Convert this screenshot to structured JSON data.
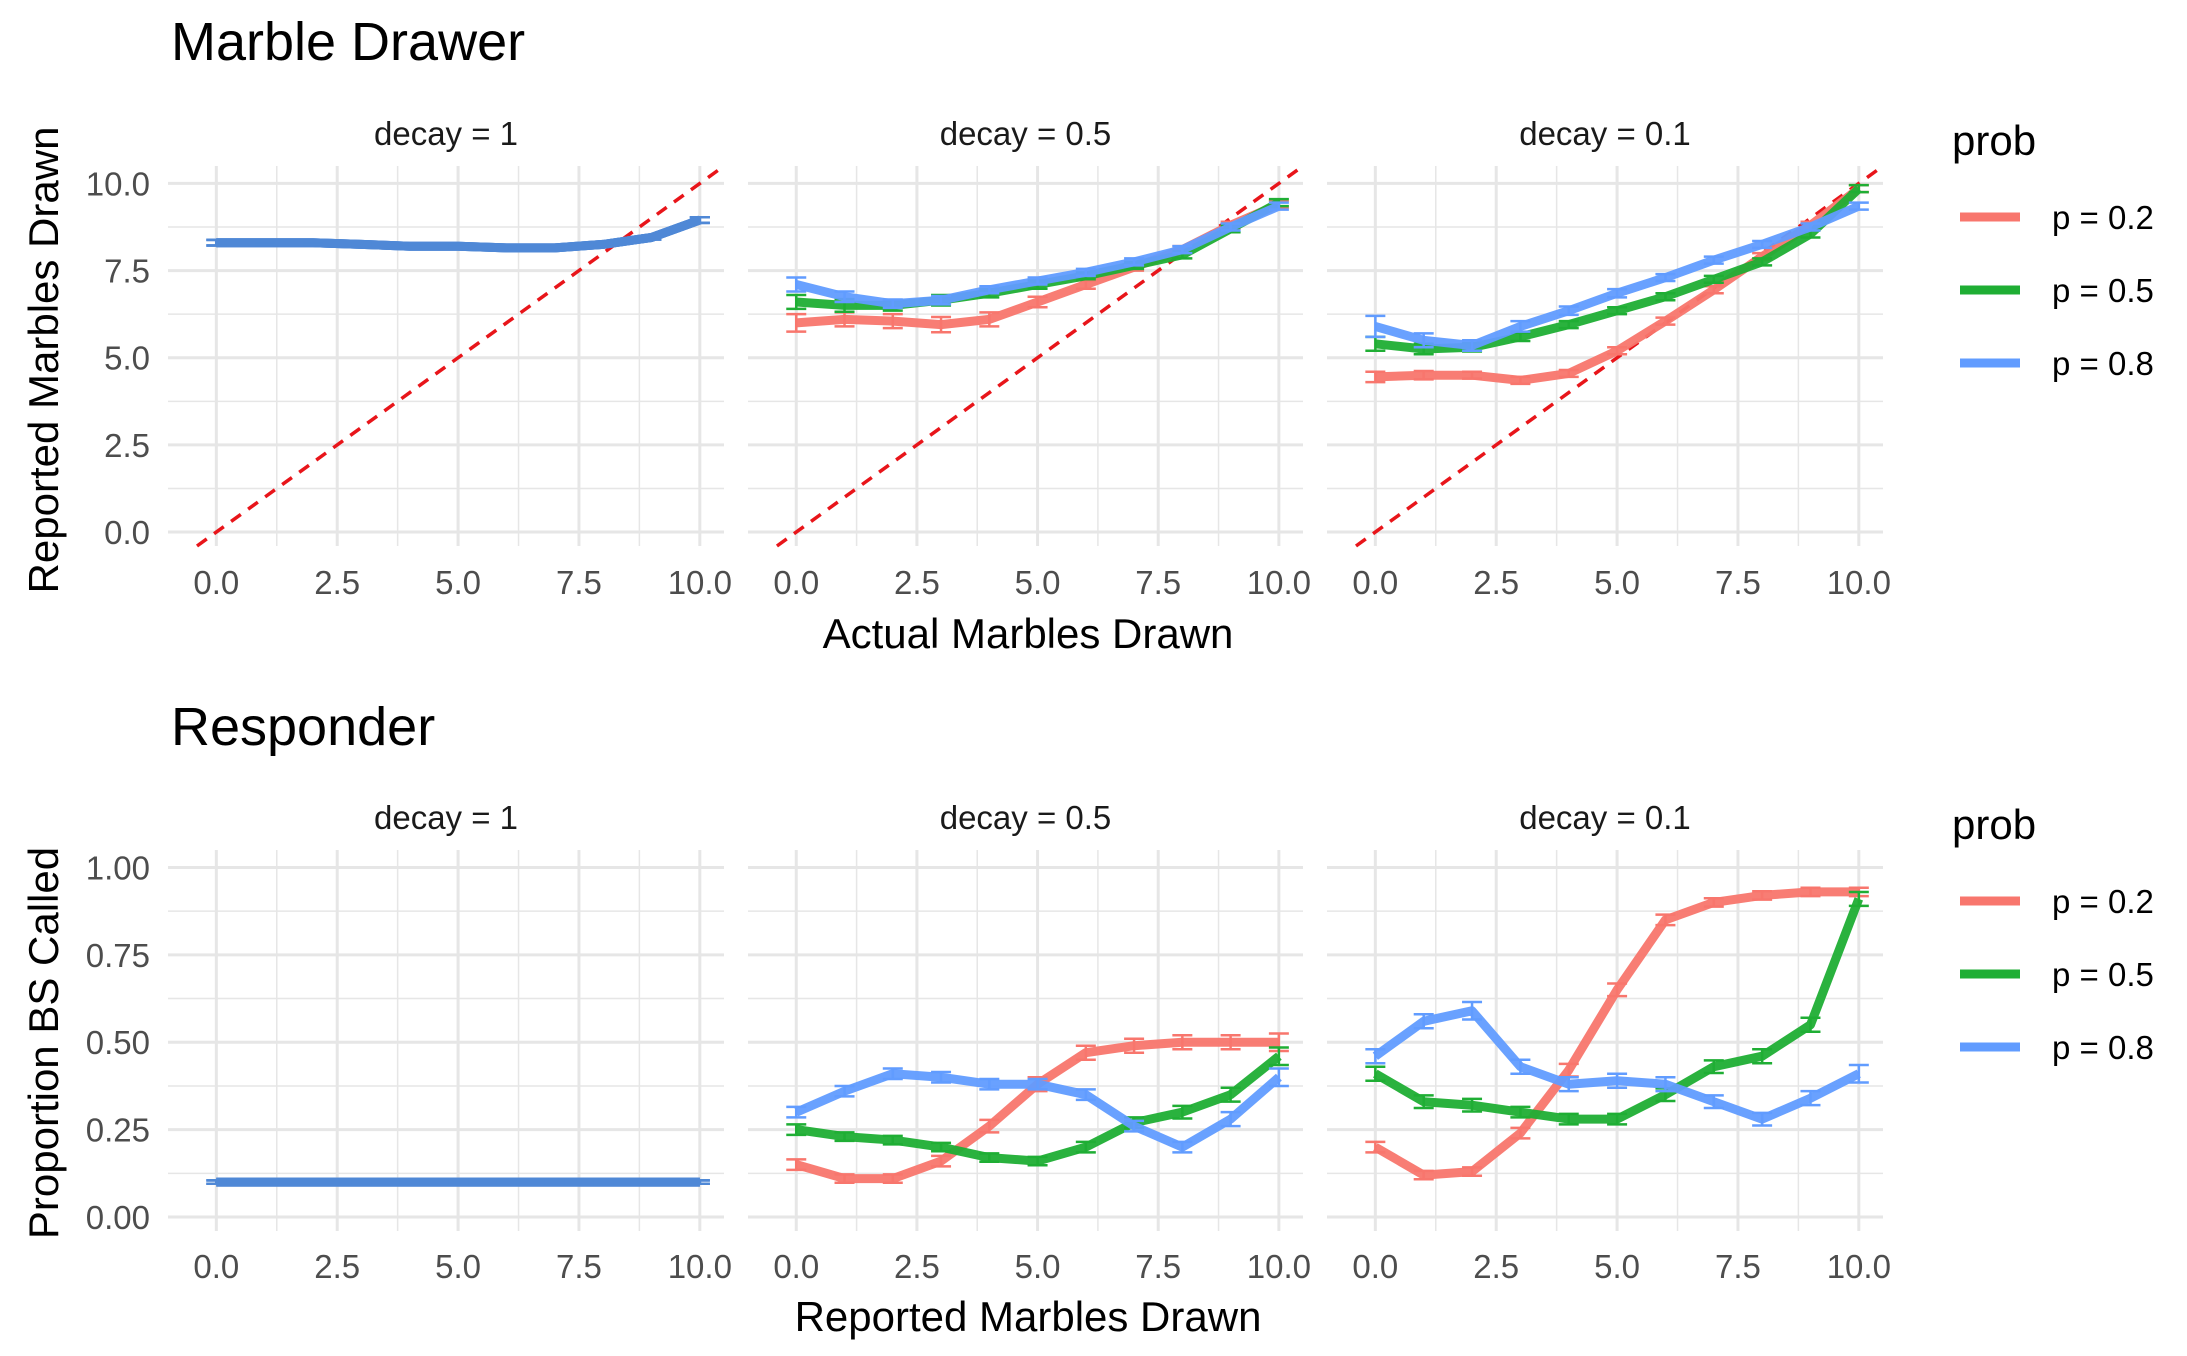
{
  "colors": {
    "p02": "#F8766D",
    "p05": "#1FAE34",
    "p08": "#619CFF",
    "overlap": "#4F88D6",
    "reference_line": "#E8151A",
    "grid": "#E6E6E6",
    "text": "#000000",
    "tick_text": "#4D4D4D"
  },
  "chart_data": [
    {
      "type": "line",
      "title": "Marble Drawer",
      "xlabel": "Actual Marbles Drawn",
      "ylabel": "Reported Marbles Drawn",
      "xlim": [
        -1,
        10.5
      ],
      "ylim": [
        -0.4,
        10.5
      ],
      "xticks": [
        "0.0",
        "2.5",
        "5.0",
        "7.5",
        "10.0"
      ],
      "yticks": [
        "0.0",
        "2.5",
        "5.0",
        "7.5",
        "10.0"
      ],
      "grid": true,
      "reference_line": "y = x (dashed)",
      "legend": {
        "title": "prob",
        "placement": "right",
        "labels": [
          "p = 0.2",
          "p = 0.5",
          "p = 0.8"
        ]
      },
      "x": [
        0,
        1,
        2,
        3,
        4,
        5,
        6,
        7,
        8,
        9,
        10
      ],
      "panels": [
        {
          "strip": "decay = 1",
          "series": [
            {
              "name": "p = 0.2",
              "values": [
                8.3,
                8.3,
                8.3,
                8.25,
                8.2,
                8.2,
                8.15,
                8.15,
                8.25,
                8.45,
                8.95
              ],
              "err": [
                0.08,
                0.05,
                0.05,
                0.05,
                0.05,
                0.05,
                0.05,
                0.05,
                0.05,
                0.06,
                0.08
              ]
            },
            {
              "name": "p = 0.5",
              "values": [
                8.3,
                8.3,
                8.3,
                8.25,
                8.2,
                8.2,
                8.15,
                8.15,
                8.25,
                8.45,
                8.95
              ],
              "err": [
                0.08,
                0.05,
                0.05,
                0.05,
                0.05,
                0.05,
                0.05,
                0.05,
                0.05,
                0.06,
                0.08
              ]
            },
            {
              "name": "p = 0.8",
              "values": [
                8.3,
                8.3,
                8.3,
                8.25,
                8.2,
                8.2,
                8.15,
                8.15,
                8.25,
                8.45,
                8.95
              ],
              "err": [
                0.08,
                0.05,
                0.05,
                0.05,
                0.05,
                0.05,
                0.05,
                0.05,
                0.05,
                0.06,
                0.08
              ]
            }
          ]
        },
        {
          "strip": "decay = 0.5",
          "series": [
            {
              "name": "p = 0.2",
              "values": [
                6.0,
                6.1,
                6.05,
                5.95,
                6.1,
                6.6,
                7.1,
                7.6,
                8.1,
                8.8,
                9.4
              ],
              "err": [
                0.25,
                0.2,
                0.2,
                0.22,
                0.2,
                0.15,
                0.12,
                0.1,
                0.1,
                0.1,
                0.1
              ]
            },
            {
              "name": "p = 0.5",
              "values": [
                6.6,
                6.5,
                6.5,
                6.65,
                6.85,
                7.1,
                7.35,
                7.65,
                7.95,
                8.7,
                9.45
              ],
              "err": [
                0.2,
                0.18,
                0.15,
                0.15,
                0.12,
                0.12,
                0.1,
                0.1,
                0.1,
                0.1,
                0.1
              ]
            },
            {
              "name": "p = 0.8",
              "values": [
                7.1,
                6.75,
                6.55,
                6.65,
                6.95,
                7.2,
                7.45,
                7.75,
                8.1,
                8.75,
                9.35
              ],
              "err": [
                0.2,
                0.15,
                0.12,
                0.12,
                0.1,
                0.1,
                0.1,
                0.1,
                0.1,
                0.1,
                0.1
              ]
            }
          ]
        },
        {
          "strip": "decay = 0.1",
          "series": [
            {
              "name": "p = 0.2",
              "values": [
                4.45,
                4.5,
                4.5,
                4.35,
                4.55,
                5.2,
                6.05,
                6.95,
                7.9,
                8.8,
                9.85
              ],
              "err": [
                0.15,
                0.12,
                0.1,
                0.1,
                0.1,
                0.1,
                0.1,
                0.1,
                0.1,
                0.1,
                0.1
              ]
            },
            {
              "name": "p = 0.5",
              "values": [
                5.4,
                5.25,
                5.3,
                5.6,
                5.95,
                6.35,
                6.75,
                7.25,
                7.75,
                8.55,
                9.85
              ],
              "err": [
                0.2,
                0.15,
                0.12,
                0.12,
                0.1,
                0.1,
                0.1,
                0.1,
                0.1,
                0.1,
                0.1
              ]
            },
            {
              "name": "p = 0.8",
              "values": [
                5.9,
                5.5,
                5.35,
                5.9,
                6.35,
                6.85,
                7.3,
                7.8,
                8.25,
                8.75,
                9.35
              ],
              "err": [
                0.3,
                0.2,
                0.15,
                0.15,
                0.12,
                0.12,
                0.1,
                0.1,
                0.1,
                0.1,
                0.1
              ]
            }
          ]
        }
      ]
    },
    {
      "type": "line",
      "title": "Responder",
      "xlabel": "Reported Marbles Drawn",
      "ylabel": "Proportion BS Called",
      "xlim": [
        -1,
        10.5
      ],
      "ylim": [
        -0.04,
        1.05
      ],
      "xticks": [
        "0.0",
        "2.5",
        "5.0",
        "7.5",
        "10.0"
      ],
      "yticks": [
        "0.00",
        "0.25",
        "0.50",
        "0.75",
        "1.00"
      ],
      "grid": true,
      "legend": {
        "title": "prob",
        "placement": "right",
        "labels": [
          "p = 0.2",
          "p = 0.5",
          "p = 0.8"
        ]
      },
      "x": [
        0,
        1,
        2,
        3,
        4,
        5,
        6,
        7,
        8,
        9,
        10
      ],
      "panels": [
        {
          "strip": "decay = 1",
          "series": [
            {
              "name": "p = 0.2",
              "values": [
                0.1,
                0.1,
                0.1,
                0.1,
                0.1,
                0.1,
                0.1,
                0.1,
                0.1,
                0.1,
                0.1
              ],
              "err": [
                0.005,
                0.005,
                0.005,
                0.005,
                0.005,
                0.005,
                0.005,
                0.005,
                0.005,
                0.005,
                0.005
              ]
            },
            {
              "name": "p = 0.5",
              "values": [
                0.1,
                0.1,
                0.1,
                0.1,
                0.1,
                0.1,
                0.1,
                0.1,
                0.1,
                0.1,
                0.1
              ],
              "err": [
                0.005,
                0.005,
                0.005,
                0.005,
                0.005,
                0.005,
                0.005,
                0.005,
                0.005,
                0.005,
                0.005
              ]
            },
            {
              "name": "p = 0.8",
              "values": [
                0.1,
                0.1,
                0.1,
                0.1,
                0.1,
                0.1,
                0.1,
                0.1,
                0.1,
                0.1,
                0.1
              ],
              "err": [
                0.005,
                0.005,
                0.005,
                0.005,
                0.005,
                0.005,
                0.005,
                0.005,
                0.005,
                0.005,
                0.005
              ]
            }
          ]
        },
        {
          "strip": "decay = 0.5",
          "series": [
            {
              "name": "p = 0.2",
              "values": [
                0.15,
                0.11,
                0.11,
                0.16,
                0.26,
                0.38,
                0.47,
                0.49,
                0.5,
                0.5,
                0.5
              ],
              "err": [
                0.015,
                0.012,
                0.012,
                0.015,
                0.018,
                0.02,
                0.02,
                0.02,
                0.02,
                0.02,
                0.025
              ]
            },
            {
              "name": "p = 0.5",
              "values": [
                0.25,
                0.23,
                0.22,
                0.2,
                0.17,
                0.16,
                0.2,
                0.27,
                0.3,
                0.35,
                0.46
              ],
              "err": [
                0.015,
                0.012,
                0.012,
                0.012,
                0.012,
                0.012,
                0.015,
                0.015,
                0.018,
                0.02,
                0.025
              ]
            },
            {
              "name": "p = 0.8",
              "values": [
                0.3,
                0.36,
                0.41,
                0.4,
                0.38,
                0.38,
                0.35,
                0.26,
                0.2,
                0.28,
                0.4
              ],
              "err": [
                0.015,
                0.015,
                0.015,
                0.015,
                0.015,
                0.015,
                0.015,
                0.015,
                0.015,
                0.02,
                0.025
              ]
            }
          ]
        },
        {
          "strip": "decay = 0.1",
          "series": [
            {
              "name": "p = 0.2",
              "values": [
                0.2,
                0.12,
                0.13,
                0.24,
                0.42,
                0.65,
                0.85,
                0.9,
                0.92,
                0.93,
                0.93
              ],
              "err": [
                0.015,
                0.012,
                0.012,
                0.015,
                0.018,
                0.018,
                0.015,
                0.012,
                0.012,
                0.012,
                0.012
              ]
            },
            {
              "name": "p = 0.5",
              "values": [
                0.41,
                0.33,
                0.32,
                0.3,
                0.28,
                0.28,
                0.35,
                0.43,
                0.46,
                0.55,
                0.91
              ],
              "err": [
                0.02,
                0.018,
                0.018,
                0.015,
                0.015,
                0.015,
                0.018,
                0.018,
                0.02,
                0.02,
                0.02
              ]
            },
            {
              "name": "p = 0.8",
              "values": [
                0.46,
                0.56,
                0.59,
                0.43,
                0.38,
                0.39,
                0.38,
                0.33,
                0.28,
                0.34,
                0.41
              ],
              "err": [
                0.02,
                0.02,
                0.025,
                0.02,
                0.02,
                0.02,
                0.02,
                0.018,
                0.018,
                0.02,
                0.025
              ]
            }
          ]
        }
      ]
    }
  ]
}
